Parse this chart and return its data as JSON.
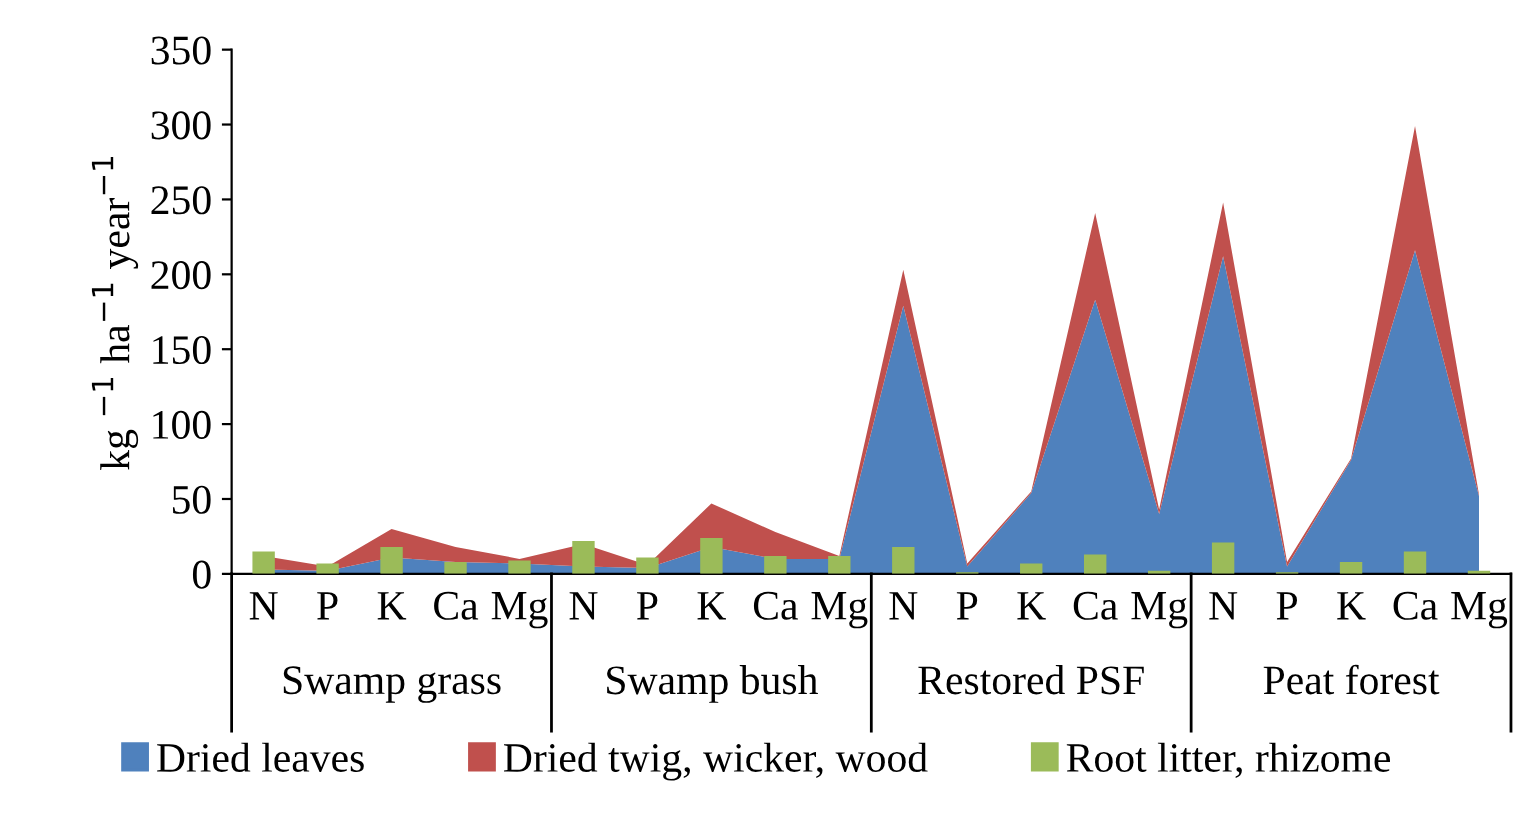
{
  "chart_data": {
    "type": "area",
    "stacked": true,
    "ylabel": "kg $^{−1}$ ha$^{−1}$ year$^{−1}$",
    "categories": [
      "N",
      "P",
      "K",
      "Ca",
      "Mg",
      "N",
      "P",
      "K",
      "Ca",
      "Mg",
      "N",
      "P",
      "K",
      "Ca",
      "Mg",
      "N",
      "P",
      "K",
      "Ca",
      "Mg"
    ],
    "series": [
      {
        "name": "Dried leaves",
        "color": "#4f81bd",
        "values": [
          3,
          2,
          11,
          8,
          7,
          5,
          4,
          18,
          10,
          10,
          179,
          5,
          54,
          183,
          40,
          212,
          5,
          76,
          216,
          52
        ]
      },
      {
        "name": "Dried twig, wicker, wood",
        "color": "#c0504d",
        "values": [
          9,
          3,
          19,
          10,
          3,
          15,
          2,
          29,
          18,
          2,
          24,
          2,
          1,
          58,
          3,
          36,
          3,
          1,
          83,
          1
        ]
      },
      {
        "name": "Root litter, rhizome",
        "type": "bar",
        "color": "#9bbb59",
        "values": [
          15,
          7,
          18,
          8,
          9,
          22,
          11,
          24,
          12,
          12,
          18,
          1,
          7,
          13,
          2,
          21,
          1,
          8,
          15,
          2
        ]
      }
    ],
    "annotations": [
      "Swamp grass",
      "Swamp bush",
      "Restored PSF",
      "Peat forest"
    ],
    "ylim": [
      0,
      350
    ],
    "yticks": [
      0,
      50,
      100,
      150,
      200,
      250,
      300,
      350
    ],
    "grid": false,
    "legend": "bottom"
  }
}
